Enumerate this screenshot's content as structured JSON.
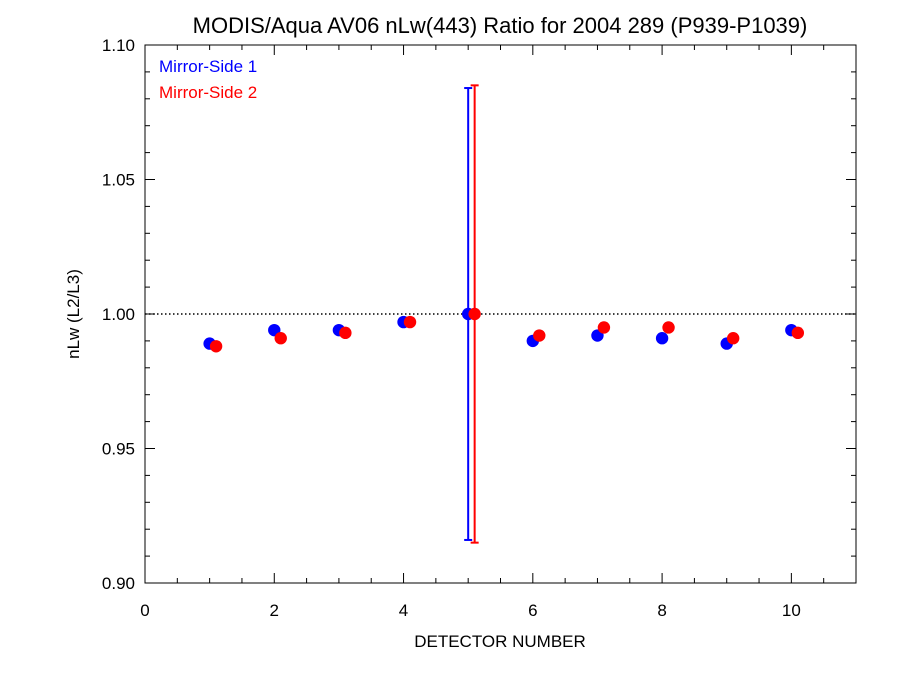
{
  "chart_data": {
    "type": "scatter",
    "title": "MODIS/Aqua AV06 nLw(443) Ratio for 2004 289 (P939-P1039)",
    "xlabel": "DETECTOR NUMBER",
    "ylabel": "nLw (L2/L3)",
    "xlim": [
      0,
      11
    ],
    "ylim": [
      0.9,
      1.1
    ],
    "x_ticks": [
      0,
      2,
      4,
      6,
      8,
      10
    ],
    "x_tick_labels": [
      "0",
      "2",
      "4",
      "6",
      "8",
      "10"
    ],
    "y_ticks": [
      0.9,
      0.95,
      1.0,
      1.05,
      1.1
    ],
    "y_tick_labels": [
      "0.90",
      "0.95",
      "1.00",
      "1.05",
      "1.10"
    ],
    "reference_line": {
      "y": 1.0,
      "style": "dotted"
    },
    "grid": false,
    "legend_position": "top-left",
    "series": [
      {
        "name": "Mirror-Side 1",
        "color": "#0000ff",
        "x": [
          1,
          2,
          3,
          4,
          5,
          6,
          7,
          8,
          9,
          10
        ],
        "y": [
          0.989,
          0.994,
          0.994,
          0.997,
          1.0,
          0.99,
          0.992,
          0.991,
          0.989,
          0.994
        ],
        "error_bars": [
          {
            "x": 5,
            "low": 0.916,
            "high": 1.084
          }
        ]
      },
      {
        "name": "Mirror-Side 2",
        "color": "#ff0000",
        "x": [
          1.1,
          2.1,
          3.1,
          4.1,
          5.1,
          6.1,
          7.1,
          8.1,
          9.1,
          10.1
        ],
        "y": [
          0.988,
          0.991,
          0.993,
          0.997,
          1.0,
          0.992,
          0.995,
          0.995,
          0.991,
          0.993
        ],
        "error_bars": [
          {
            "x": 5.1,
            "low": 0.915,
            "high": 1.085
          }
        ]
      }
    ]
  }
}
